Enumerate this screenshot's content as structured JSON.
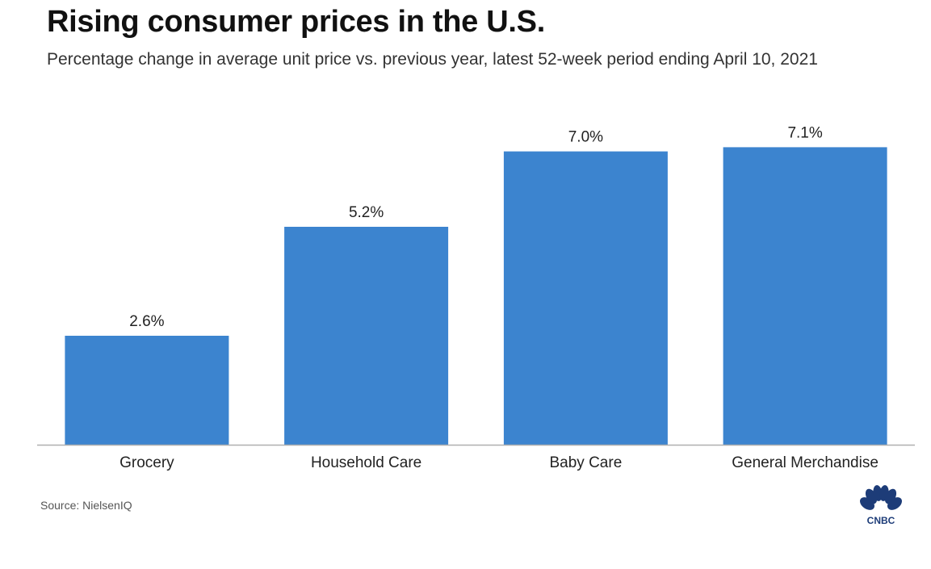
{
  "header": {
    "title": "Rising consumer prices in the U.S.",
    "subtitle": "Percentage change in average unit price vs. previous year, latest 52-week period ending April 10, 2021"
  },
  "footer": {
    "source": "Source: NielsenIQ",
    "logo_text": "CNBC"
  },
  "colors": {
    "bar": "#3c84cf",
    "baseline": "#b0b0b0",
    "logo": "#1d3c78"
  },
  "chart_data": {
    "type": "bar",
    "categories": [
      "Grocery",
      "Household Care",
      "Baby Care",
      "General Merchandise"
    ],
    "values": [
      2.6,
      5.2,
      7.0,
      7.1
    ],
    "value_labels": [
      "2.6%",
      "5.2%",
      "7.0%",
      "7.1%"
    ],
    "ylim": [
      0,
      7.3
    ],
    "grid": false,
    "legend": "none"
  }
}
